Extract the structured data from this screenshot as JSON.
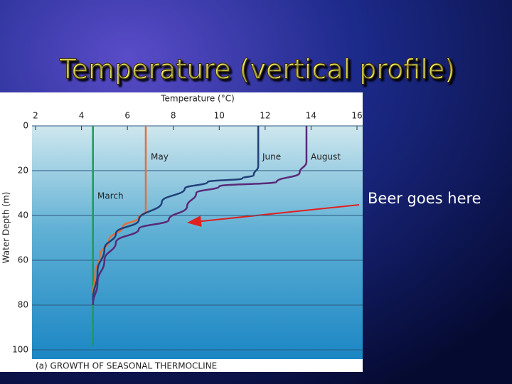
{
  "slide_title": "Temperature (vertical profile)",
  "annotation": "Beer goes here",
  "chart_data": {
    "type": "line",
    "x_label": "Temperature (°C)",
    "y_label": "Water Depth (m)",
    "caption": "(a) GROWTH OF SEASONAL THERMOCLINE",
    "xlim": [
      2,
      16
    ],
    "xticks": [
      2,
      4,
      6,
      8,
      10,
      12,
      14,
      16
    ],
    "ylim": [
      0,
      100
    ],
    "yticks": [
      0,
      20,
      40,
      60,
      80,
      100
    ],
    "invert_y": true,
    "grid": true,
    "series": [
      {
        "name": "March",
        "color": "#1e9a5a",
        "x": [
          4.5,
          4.5
        ],
        "values": [
          0,
          98
        ]
      },
      {
        "name": "May",
        "color": "#e0703a",
        "x": [
          6.8,
          6.8,
          6.5,
          5.8,
          5.2,
          4.8,
          4.6,
          4.5
        ],
        "values": [
          0,
          38,
          41,
          45,
          51,
          58,
          66,
          75
        ]
      },
      {
        "name": "June",
        "color": "#22407a",
        "x": [
          11.7,
          11.7,
          11.5,
          11,
          9.5,
          8.5,
          7.5,
          6.5,
          5.5,
          5,
          4.7,
          4.5
        ],
        "values": [
          0,
          18,
          22,
          23.5,
          25,
          28,
          34,
          42,
          48,
          55,
          65,
          78
        ]
      },
      {
        "name": "August",
        "color": "#5a2a78",
        "x": [
          13.8,
          13.8,
          13.5,
          12.5,
          10,
          9,
          8.6,
          7.8,
          6.5,
          5.5,
          5,
          4.7,
          4.5
        ],
        "values": [
          0,
          16,
          21,
          25,
          27,
          30,
          36,
          42,
          46,
          52,
          60,
          70,
          80
        ]
      }
    ]
  }
}
